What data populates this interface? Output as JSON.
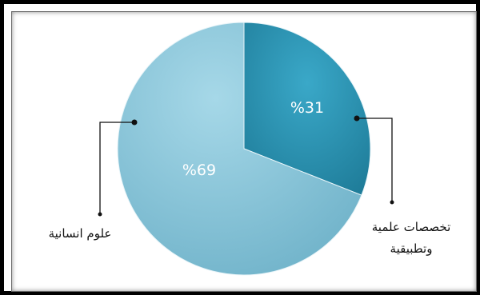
{
  "chart_data": {
    "type": "pie",
    "slices": [
      {
        "label": "تخصصات علمية وتطبيقية",
        "label_lines": [
          "تخصصات علمية",
          "وتطبيقية"
        ],
        "value": 31,
        "value_label": "%31",
        "color": "#2a93b4"
      },
      {
        "label": "علوم انسانية",
        "label_lines": [
          "علوم انسانية"
        ],
        "value": 69,
        "value_label": "%69",
        "color": "#7ec1d8"
      }
    ]
  }
}
